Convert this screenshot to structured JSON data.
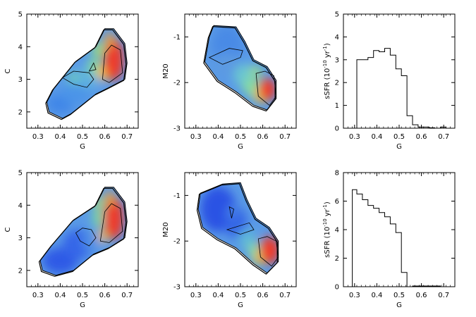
{
  "figure": {
    "description_free": true
  },
  "chart_data": [
    {
      "id": "top-left",
      "type": "heatmap",
      "xlabel": "G",
      "ylabel": "C",
      "xlim": [
        0.25,
        0.75
      ],
      "ylim": [
        1.5,
        5
      ],
      "xticks": [
        "0.3",
        "0.4",
        "0.5",
        "0.6",
        "0.7"
      ],
      "yticks": [
        "2",
        "3",
        "4",
        "5"
      ],
      "xtick_values": [
        0.3,
        0.4,
        0.5,
        0.6,
        0.7
      ],
      "ytick_values": [
        2,
        3,
        4,
        5
      ],
      "outline": [
        [
          0.35,
          2.0
        ],
        [
          0.41,
          1.8
        ],
        [
          0.45,
          1.95
        ],
        [
          0.56,
          2.55
        ],
        [
          0.62,
          2.75
        ],
        [
          0.69,
          3.0
        ],
        [
          0.7,
          3.5
        ],
        [
          0.69,
          4.1
        ],
        [
          0.64,
          4.55
        ],
        [
          0.6,
          4.55
        ],
        [
          0.56,
          4.0
        ],
        [
          0.47,
          3.55
        ],
        [
          0.37,
          2.7
        ],
        [
          0.34,
          2.3
        ]
      ],
      "blobs": [
        {
          "x": 0.4,
          "y": 2.25,
          "rx": 0.06,
          "ry": 0.3,
          "color": "#3f86e8"
        },
        {
          "x": 0.47,
          "y": 2.6,
          "rx": 0.07,
          "ry": 0.35,
          "color": "#4b94e8"
        },
        {
          "x": 0.53,
          "y": 3.05,
          "rx": 0.05,
          "ry": 0.35,
          "color": "#5fb0e0"
        },
        {
          "x": 0.46,
          "y": 3.05,
          "rx": 0.03,
          "ry": 0.2,
          "color": "#6ac8c0"
        },
        {
          "x": 0.55,
          "y": 3.4,
          "rx": 0.03,
          "ry": 0.25,
          "color": "#7ad6a0"
        },
        {
          "x": 0.57,
          "y": 3.9,
          "rx": 0.025,
          "ry": 0.25,
          "color": "#9be07a"
        },
        {
          "x": 0.59,
          "y": 3.2,
          "rx": 0.025,
          "ry": 0.25,
          "color": "#f2c040"
        },
        {
          "x": 0.64,
          "y": 3.6,
          "rx": 0.045,
          "ry": 0.65,
          "color": "#ee3a2a"
        },
        {
          "x": 0.62,
          "y": 4.2,
          "rx": 0.02,
          "ry": 0.25,
          "color": "#f5a030"
        }
      ],
      "contours": [
        [
          [
            0.41,
            3.05
          ],
          [
            0.46,
            3.25
          ],
          [
            0.53,
            3.2
          ],
          [
            0.55,
            3.0
          ],
          [
            0.52,
            2.75
          ],
          [
            0.46,
            2.85
          ]
        ],
        [
          [
            0.53,
            3.25
          ],
          [
            0.55,
            3.5
          ],
          [
            0.56,
            3.3
          ]
        ],
        [
          [
            0.59,
            3.0
          ],
          [
            0.6,
            3.8
          ],
          [
            0.63,
            4.05
          ],
          [
            0.67,
            3.9
          ],
          [
            0.68,
            3.2
          ],
          [
            0.62,
            2.9
          ]
        ]
      ]
    },
    {
      "id": "top-middle",
      "type": "heatmap",
      "xlabel": "G",
      "ylabel": "M20",
      "xlim": [
        0.25,
        0.75
      ],
      "ylim": [
        -3,
        -0.5
      ],
      "xticks": [
        "0.3",
        "0.4",
        "0.5",
        "0.6",
        "0.7"
      ],
      "yticks": [
        "-1",
        "-2",
        "-3"
      ],
      "xtick_values": [
        0.3,
        0.4,
        0.5,
        0.6,
        0.7
      ],
      "ytick_values": [
        -1,
        -2,
        -3
      ],
      "outline": [
        [
          0.38,
          -0.75
        ],
        [
          0.48,
          -0.78
        ],
        [
          0.52,
          -1.1
        ],
        [
          0.56,
          -1.5
        ],
        [
          0.62,
          -1.65
        ],
        [
          0.66,
          -1.95
        ],
        [
          0.66,
          -2.35
        ],
        [
          0.62,
          -2.6
        ],
        [
          0.56,
          -2.5
        ],
        [
          0.48,
          -2.2
        ],
        [
          0.4,
          -1.95
        ],
        [
          0.34,
          -1.55
        ],
        [
          0.36,
          -1.0
        ]
      ],
      "blobs": [
        {
          "x": 0.44,
          "y": -1.2,
          "rx": 0.07,
          "ry": 0.45,
          "color": "#4a8ae6"
        },
        {
          "x": 0.44,
          "y": -1.6,
          "rx": 0.06,
          "ry": 0.25,
          "color": "#5c9ae2"
        },
        {
          "x": 0.52,
          "y": -1.85,
          "rx": 0.05,
          "ry": 0.25,
          "color": "#6ac6d0"
        },
        {
          "x": 0.55,
          "y": -2.1,
          "rx": 0.04,
          "ry": 0.2,
          "color": "#86dca0"
        },
        {
          "x": 0.57,
          "y": -1.75,
          "rx": 0.025,
          "ry": 0.12,
          "color": "#9ee07a"
        },
        {
          "x": 0.59,
          "y": -2.3,
          "rx": 0.03,
          "ry": 0.15,
          "color": "#e8d040"
        },
        {
          "x": 0.62,
          "y": -2.15,
          "rx": 0.04,
          "ry": 0.25,
          "color": "#ee3a2a"
        }
      ],
      "contours": [
        [
          [
            0.36,
            -1.45
          ],
          [
            0.42,
            -1.6
          ],
          [
            0.5,
            -1.45
          ],
          [
            0.51,
            -1.3
          ],
          [
            0.45,
            -1.25
          ]
        ],
        [
          [
            0.57,
            -1.8
          ],
          [
            0.58,
            -2.3
          ],
          [
            0.63,
            -2.5
          ],
          [
            0.66,
            -2.3
          ],
          [
            0.65,
            -1.85
          ],
          [
            0.61,
            -1.75
          ]
        ]
      ]
    },
    {
      "id": "top-right",
      "type": "bar",
      "xlabel": "G",
      "ylabel": "sSFR (10^-10 yr^-1)",
      "xlim": [
        0.25,
        0.75
      ],
      "ylim": [
        0,
        5
      ],
      "xticks": [
        "0.3",
        "0.4",
        "0.5",
        "0.6",
        "0.7"
      ],
      "yticks": [
        "0",
        "1",
        "2",
        "3",
        "4",
        "5"
      ],
      "xtick_values": [
        0.3,
        0.4,
        0.5,
        0.6,
        0.7
      ],
      "ytick_values": [
        0,
        1,
        2,
        3,
        4,
        5
      ],
      "bin_edges": [
        0.31,
        0.335,
        0.36,
        0.385,
        0.41,
        0.435,
        0.46,
        0.485,
        0.51,
        0.535,
        0.56,
        0.585,
        0.61,
        0.635,
        0.66,
        0.685,
        0.71
      ],
      "values": [
        3.0,
        3.0,
        3.1,
        3.4,
        3.35,
        3.5,
        3.2,
        2.6,
        2.3,
        0.55,
        0.15,
        0.05,
        0.05,
        0.02,
        0.0,
        0.05
      ]
    },
    {
      "id": "bottom-left",
      "type": "heatmap",
      "xlabel": "G",
      "ylabel": "C",
      "xlim": [
        0.25,
        0.75
      ],
      "ylim": [
        1.5,
        5
      ],
      "xticks": [
        "0.3",
        "0.4",
        "0.5",
        "0.6",
        "0.7"
      ],
      "yticks": [
        "2",
        "3",
        "4",
        "5"
      ],
      "xtick_values": [
        0.3,
        0.4,
        0.5,
        0.6,
        0.7
      ],
      "ytick_values": [
        2,
        3,
        4,
        5
      ],
      "outline": [
        [
          0.32,
          2.0
        ],
        [
          0.38,
          1.85
        ],
        [
          0.46,
          2.0
        ],
        [
          0.55,
          2.5
        ],
        [
          0.62,
          2.7
        ],
        [
          0.69,
          3.0
        ],
        [
          0.7,
          3.5
        ],
        [
          0.69,
          4.1
        ],
        [
          0.64,
          4.55
        ],
        [
          0.6,
          4.55
        ],
        [
          0.56,
          4.0
        ],
        [
          0.46,
          3.55
        ],
        [
          0.36,
          2.75
        ],
        [
          0.31,
          2.3
        ]
      ],
      "blobs": [
        {
          "x": 0.4,
          "y": 2.3,
          "rx": 0.08,
          "ry": 0.4,
          "color": "#2f5ae6"
        },
        {
          "x": 0.48,
          "y": 2.8,
          "rx": 0.07,
          "ry": 0.45,
          "color": "#3466e8"
        },
        {
          "x": 0.54,
          "y": 2.9,
          "rx": 0.04,
          "ry": 0.3,
          "color": "#4f90e6"
        },
        {
          "x": 0.57,
          "y": 3.6,
          "rx": 0.025,
          "ry": 0.3,
          "color": "#7ad6a0"
        },
        {
          "x": 0.57,
          "y": 4.05,
          "rx": 0.02,
          "ry": 0.2,
          "color": "#a8e070"
        },
        {
          "x": 0.59,
          "y": 3.05,
          "rx": 0.02,
          "ry": 0.2,
          "color": "#f2c040"
        },
        {
          "x": 0.64,
          "y": 3.6,
          "rx": 0.045,
          "ry": 0.65,
          "color": "#ee3a2a"
        },
        {
          "x": 0.62,
          "y": 4.2,
          "rx": 0.02,
          "ry": 0.25,
          "color": "#f5a030"
        }
      ],
      "contours": [
        [
          [
            0.47,
            3.15
          ],
          [
            0.5,
            3.3
          ],
          [
            0.54,
            3.25
          ],
          [
            0.56,
            3.0
          ],
          [
            0.53,
            2.75
          ],
          [
            0.49,
            2.9
          ]
        ],
        [
          [
            0.58,
            2.9
          ],
          [
            0.6,
            3.8
          ],
          [
            0.63,
            4.05
          ],
          [
            0.67,
            3.9
          ],
          [
            0.68,
            3.2
          ],
          [
            0.62,
            2.85
          ]
        ]
      ]
    },
    {
      "id": "bottom-middle",
      "type": "heatmap",
      "xlabel": "G",
      "ylabel": "M20",
      "xlim": [
        0.25,
        0.75
      ],
      "ylim": [
        -3,
        -0.5
      ],
      "xticks": [
        "0.3",
        "0.4",
        "0.5",
        "0.6",
        "0.7"
      ],
      "yticks": [
        "-1",
        "-2",
        "-3"
      ],
      "xtick_values": [
        0.3,
        0.4,
        0.5,
        0.6,
        0.7
      ],
      "ytick_values": [
        -1,
        -2,
        -3
      ],
      "outline": [
        [
          0.32,
          -0.95
        ],
        [
          0.42,
          -0.75
        ],
        [
          0.5,
          -0.72
        ],
        [
          0.53,
          -1.1
        ],
        [
          0.57,
          -1.5
        ],
        [
          0.63,
          -1.7
        ],
        [
          0.67,
          -2.0
        ],
        [
          0.67,
          -2.45
        ],
        [
          0.62,
          -2.7
        ],
        [
          0.56,
          -2.5
        ],
        [
          0.48,
          -2.15
        ],
        [
          0.4,
          -1.95
        ],
        [
          0.33,
          -1.7
        ],
        [
          0.31,
          -1.3
        ]
      ],
      "blobs": [
        {
          "x": 0.4,
          "y": -1.3,
          "rx": 0.08,
          "ry": 0.5,
          "color": "#2b52e4"
        },
        {
          "x": 0.48,
          "y": -1.6,
          "rx": 0.05,
          "ry": 0.35,
          "color": "#3566e6"
        },
        {
          "x": 0.46,
          "y": -1.35,
          "rx": 0.015,
          "ry": 0.12,
          "color": "#4f92e6"
        },
        {
          "x": 0.53,
          "y": -1.95,
          "rx": 0.04,
          "ry": 0.2,
          "color": "#5fb8d8"
        },
        {
          "x": 0.56,
          "y": -2.2,
          "rx": 0.03,
          "ry": 0.15,
          "color": "#86dca0"
        },
        {
          "x": 0.58,
          "y": -2.4,
          "rx": 0.025,
          "ry": 0.12,
          "color": "#e8d040"
        },
        {
          "x": 0.63,
          "y": -2.2,
          "rx": 0.045,
          "ry": 0.3,
          "color": "#ee3a2a"
        }
      ],
      "contours": [
        [
          [
            0.45,
            -1.25
          ],
          [
            0.46,
            -1.5
          ],
          [
            0.47,
            -1.3
          ]
        ],
        [
          [
            0.44,
            -1.75
          ],
          [
            0.5,
            -1.85
          ],
          [
            0.56,
            -1.75
          ],
          [
            0.54,
            -1.6
          ]
        ],
        [
          [
            0.58,
            -1.95
          ],
          [
            0.59,
            -2.35
          ],
          [
            0.64,
            -2.55
          ],
          [
            0.67,
            -2.35
          ],
          [
            0.66,
            -2.0
          ],
          [
            0.62,
            -1.9
          ]
        ]
      ]
    },
    {
      "id": "bottom-right",
      "type": "bar",
      "xlabel": "G",
      "ylabel": "sSFR (10^-10 yr^-1)",
      "xlim": [
        0.25,
        0.75
      ],
      "ylim": [
        0,
        8
      ],
      "xticks": [
        "0.3",
        "0.4",
        "0.5",
        "0.6",
        "0.7"
      ],
      "yticks": [
        "0",
        "2",
        "4",
        "6",
        "8"
      ],
      "xtick_values": [
        0.3,
        0.4,
        0.5,
        0.6,
        0.7
      ],
      "ytick_values": [
        0,
        2,
        4,
        6,
        8
      ],
      "bin_edges": [
        0.29,
        0.31,
        0.335,
        0.36,
        0.385,
        0.41,
        0.435,
        0.46,
        0.485,
        0.51,
        0.535,
        0.56,
        0.585,
        0.61,
        0.635,
        0.66,
        0.685
      ],
      "values": [
        6.8,
        6.5,
        6.1,
        5.7,
        5.5,
        5.2,
        4.9,
        4.4,
        3.8,
        1.0,
        0.0,
        0.05,
        0.05,
        0.05,
        0.05,
        0.05
      ]
    }
  ]
}
